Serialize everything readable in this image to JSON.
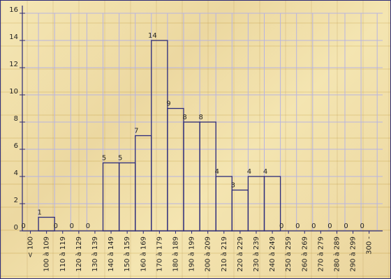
{
  "chart_data": {
    "type": "bar",
    "categories": [
      "< 100",
      "100 à 109",
      "110 à 119",
      "120 à 129",
      "130 à 139",
      "140 à 149",
      "150 à 159",
      "160 à 169",
      "170 à 179",
      "180 à 189",
      "190 à 199",
      "200 à 209",
      "210 à 219",
      "220 à 229",
      "230 à 239",
      "240 à 249",
      "250 à 259",
      "260 à 269",
      "270 à 279",
      "280 à 289",
      "290 à 299",
      "300 -"
    ],
    "values": [
      0,
      1,
      0,
      0,
      0,
      5,
      5,
      7,
      14,
      9,
      8,
      8,
      4,
      3,
      4,
      4,
      0,
      0,
      0,
      0,
      0,
      0
    ],
    "title": "",
    "xlabel": "",
    "ylabel": "",
    "ylim": [
      0,
      16
    ],
    "yticks": [
      0,
      2,
      4,
      6,
      8,
      10,
      12,
      14,
      16
    ],
    "grid": true,
    "legend": "none",
    "colors": {
      "frame": "#2b2a7a",
      "bar_edge": "#2b2a7a",
      "grid": "#b8b4e0",
      "text": "#222222"
    }
  }
}
